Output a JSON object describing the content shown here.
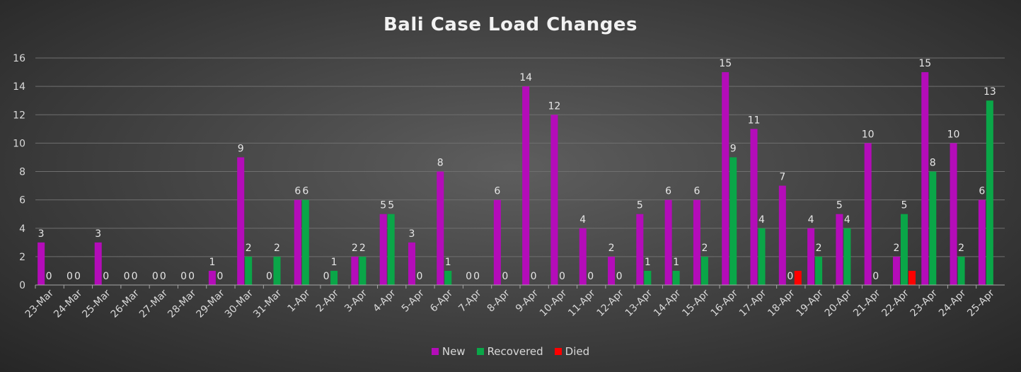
{
  "chart_data": {
    "type": "bar",
    "title": "Bali Case Load Changes",
    "xlabel": "",
    "ylabel": "",
    "ylim": [
      0,
      16
    ],
    "yticks": [
      0,
      2,
      4,
      6,
      8,
      10,
      12,
      14,
      16
    ],
    "grid": true,
    "legend_position": "bottom",
    "categories": [
      "23-Mar",
      "24-Mar",
      "25-Mar",
      "26-Mar",
      "27-Mar",
      "28-Mar",
      "29-Mar",
      "30-Mar",
      "31-Mar",
      "1-Apr",
      "2-Apr",
      "3-Apr",
      "4-Apr",
      "5-Apr",
      "6-Apr",
      "7-Apr",
      "8-Apr",
      "9-Apr",
      "10-Apr",
      "11-Apr",
      "12-Apr",
      "13-Apr",
      "14-Apr",
      "15-Apr",
      "16-Apr",
      "17-Apr",
      "18-Apr",
      "19-Apr",
      "20-Apr",
      "21-Apr",
      "22-Apr",
      "23-Apr",
      "24-Apr",
      "25-Apr"
    ],
    "series": [
      {
        "name": "New",
        "color": "#b40cb9",
        "values": [
          3,
          0,
          3,
          0,
          0,
          0,
          1,
          9,
          0,
          6,
          0,
          2,
          5,
          3,
          8,
          0,
          6,
          14,
          12,
          4,
          2,
          5,
          6,
          6,
          15,
          11,
          7,
          4,
          5,
          10,
          2,
          15,
          10,
          6
        ],
        "labels": [
          "3",
          "0",
          "3",
          "0",
          "0",
          "0",
          "1",
          "9",
          "0",
          "6",
          "0",
          "2",
          "5",
          "3",
          "8",
          "0",
          "6",
          "14",
          "12",
          "4",
          "2",
          "5",
          "6",
          "6",
          "15",
          "11",
          "7",
          "4",
          "5",
          "10",
          "2",
          "15",
          "10",
          "6"
        ]
      },
      {
        "name": "Recovered",
        "color": "#0aa648",
        "values": [
          0,
          0,
          0,
          0,
          0,
          0,
          0,
          2,
          2,
          6,
          1,
          2,
          5,
          0,
          1,
          0,
          0,
          0,
          0,
          0,
          0,
          1,
          1,
          2,
          9,
          4,
          0,
          2,
          4,
          0,
          5,
          8,
          2,
          13
        ],
        "labels": [
          "0",
          "0",
          "0",
          "0",
          "0",
          "0",
          "0",
          "2",
          "2",
          "6",
          "1",
          "2",
          "5",
          "0",
          "1",
          "0",
          "0",
          "0",
          "0",
          "0",
          "0",
          "1",
          "1",
          "2",
          "9",
          "4",
          "0",
          "2",
          "4",
          "0",
          "5",
          "8",
          "2",
          "13"
        ]
      },
      {
        "name": "Died",
        "color": "#ff0000",
        "values": [
          0,
          0,
          0,
          0,
          0,
          0,
          0,
          0,
          0,
          0,
          0,
          0,
          0,
          0,
          0,
          0,
          0,
          0,
          0,
          0,
          0,
          0,
          0,
          0,
          0,
          0,
          1,
          0,
          0,
          0,
          1,
          0,
          0,
          0
        ],
        "labels": []
      }
    ]
  }
}
